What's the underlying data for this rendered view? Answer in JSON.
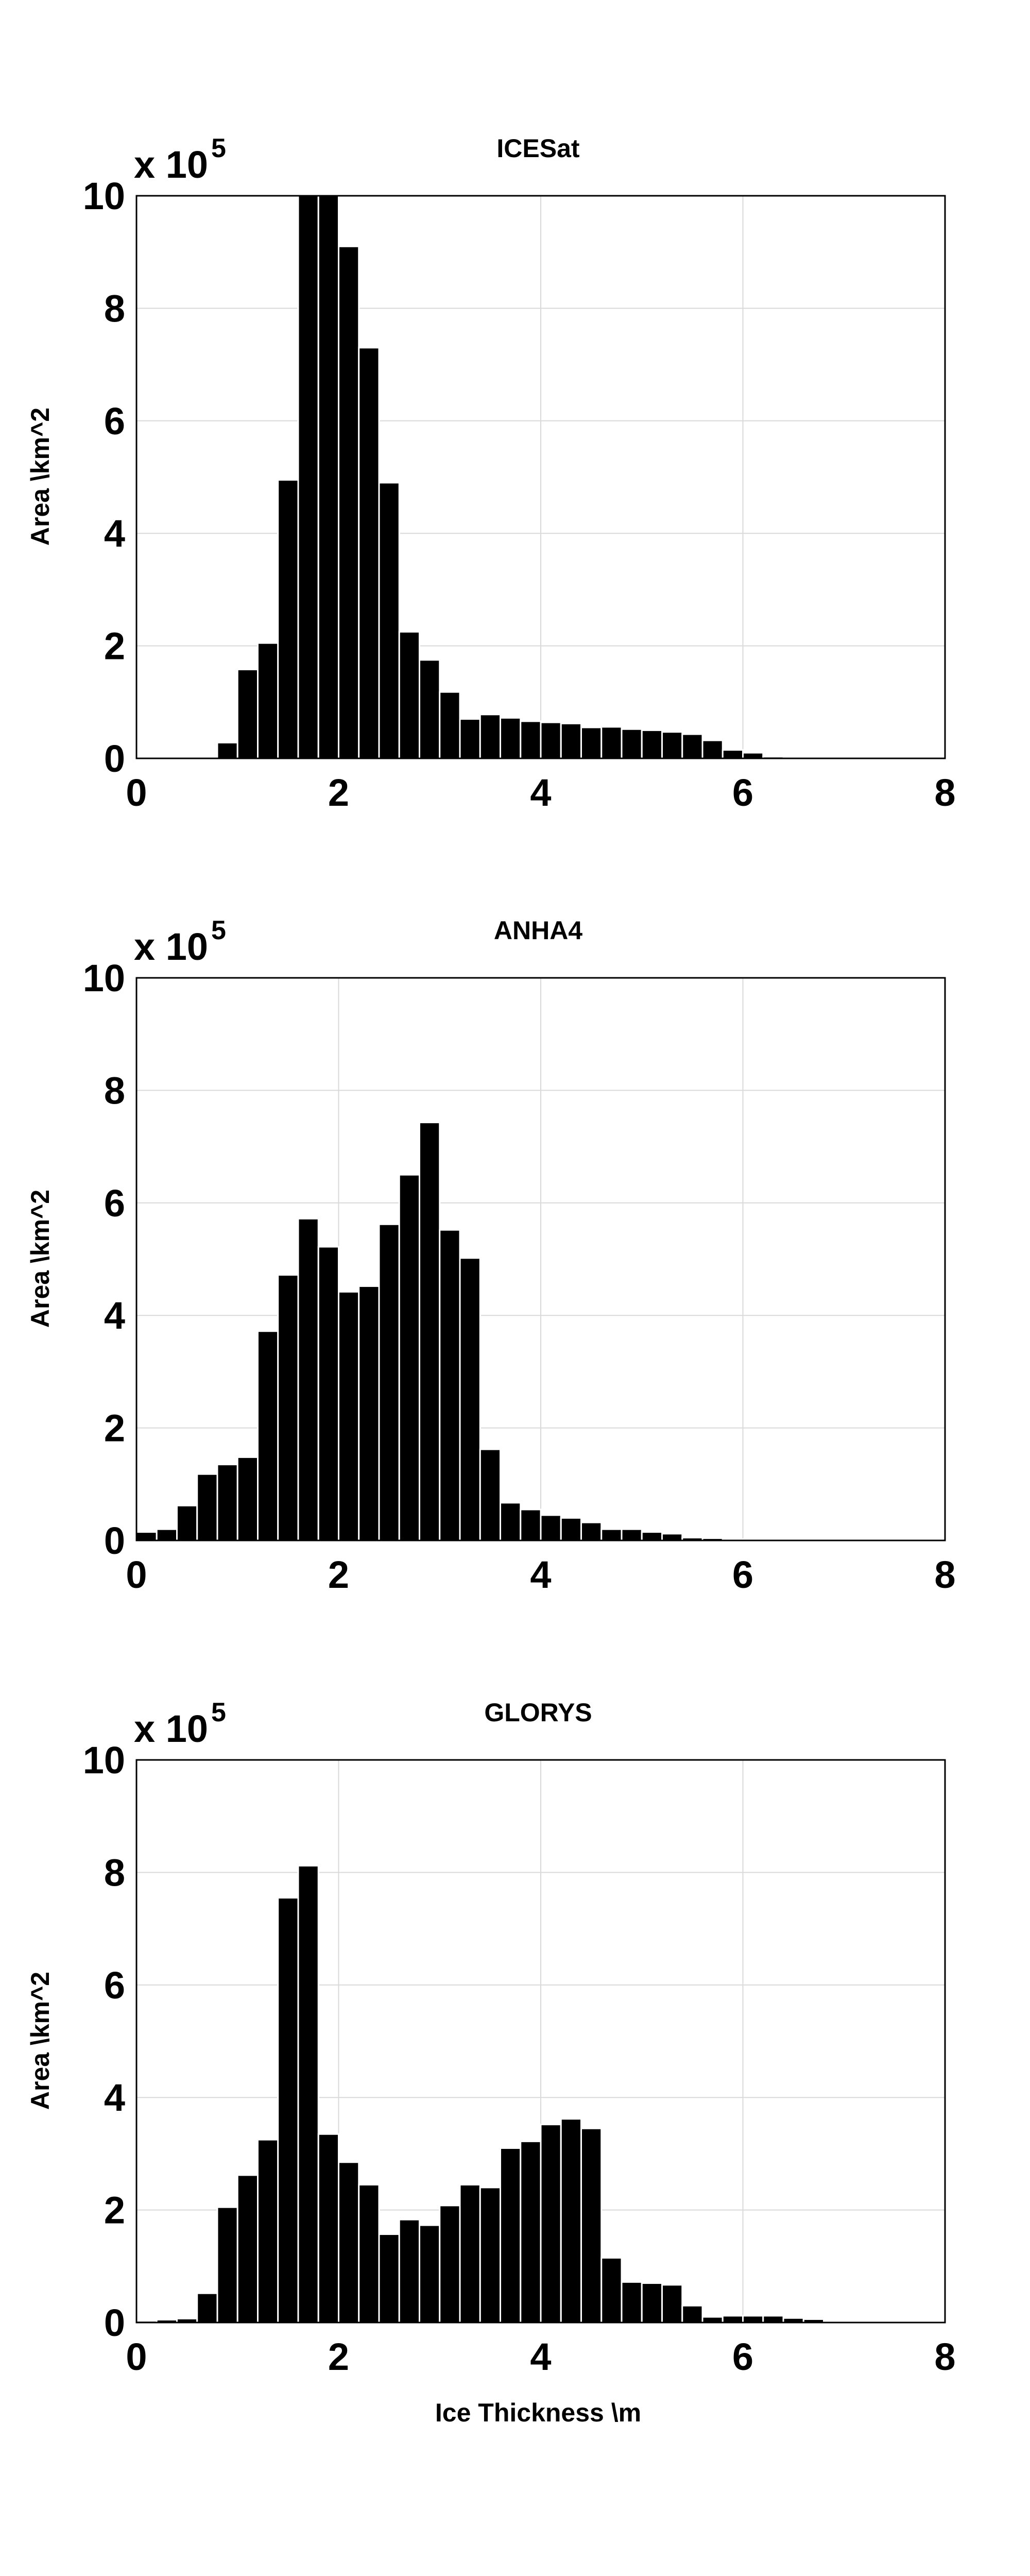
{
  "chart_data": [
    {
      "type": "bar",
      "title": "ICESat",
      "xlabel": "",
      "ylabel": "Area \\km^2",
      "y_multiplier": "x 10",
      "y_multiplier_exp": "5",
      "xlim": [
        0,
        8
      ],
      "ylim": [
        0,
        10
      ],
      "x_ticks": [
        "0",
        "2",
        "4",
        "6",
        "8"
      ],
      "y_ticks": [
        "0",
        "2",
        "4",
        "6",
        "8",
        "10"
      ],
      "grid": true,
      "bin_width": 0.2,
      "bin_starts": [
        0.0,
        0.2,
        0.4,
        0.6,
        0.8,
        1.0,
        1.2,
        1.4,
        1.6,
        1.8,
        2.0,
        2.2,
        2.4,
        2.6,
        2.8,
        3.0,
        3.2,
        3.4,
        3.6,
        3.8,
        4.0,
        4.2,
        4.4,
        4.6,
        4.8,
        5.0,
        5.2,
        5.4,
        5.6,
        5.8,
        6.0,
        6.2,
        6.4,
        6.6,
        6.8,
        7.0,
        7.2,
        7.4,
        7.6,
        7.8
      ],
      "values": [
        0,
        0,
        0,
        0,
        0.28,
        1.58,
        2.05,
        4.95,
        10.0,
        10.0,
        9.1,
        7.3,
        4.9,
        2.25,
        1.75,
        1.18,
        0.7,
        0.78,
        0.72,
        0.66,
        0.64,
        0.62,
        0.55,
        0.56,
        0.52,
        0.5,
        0.47,
        0.43,
        0.32,
        0.15,
        0.1,
        0.03,
        0,
        0,
        0,
        0,
        0,
        0,
        0,
        0
      ]
    },
    {
      "type": "bar",
      "title": "ANHA4",
      "xlabel": "",
      "ylabel": "Area \\km^2",
      "y_multiplier": "x 10",
      "y_multiplier_exp": "5",
      "xlim": [
        0,
        8
      ],
      "ylim": [
        0,
        10
      ],
      "x_ticks": [
        "0",
        "2",
        "4",
        "6",
        "8"
      ],
      "y_ticks": [
        "0",
        "2",
        "4",
        "6",
        "8",
        "10"
      ],
      "grid": true,
      "bin_width": 0.2,
      "bin_starts": [
        0.0,
        0.2,
        0.4,
        0.6,
        0.8,
        1.0,
        1.2,
        1.4,
        1.6,
        1.8,
        2.0,
        2.2,
        2.4,
        2.6,
        2.8,
        3.0,
        3.2,
        3.4,
        3.6,
        3.8,
        4.0,
        4.2,
        4.4,
        4.6,
        4.8,
        5.0,
        5.2,
        5.4,
        5.6,
        5.8,
        6.0,
        6.2,
        6.4,
        6.6,
        6.8,
        7.0,
        7.2,
        7.4,
        7.6,
        7.8
      ],
      "values": [
        0.15,
        0.2,
        0.62,
        1.18,
        1.35,
        1.48,
        3.72,
        4.72,
        5.72,
        5.22,
        4.42,
        4.52,
        5.62,
        6.5,
        7.43,
        5.52,
        5.02,
        1.62,
        0.67,
        0.55,
        0.45,
        0.4,
        0.32,
        0.2,
        0.2,
        0.15,
        0.12,
        0.05,
        0.04,
        0.02,
        0.01,
        0.01,
        0,
        0,
        0,
        0,
        0,
        0,
        0,
        0
      ]
    },
    {
      "type": "bar",
      "title": "GLORYS",
      "xlabel": "Ice Thickness \\m",
      "ylabel": "Area \\km^2",
      "y_multiplier": "x 10",
      "y_multiplier_exp": "5",
      "xlim": [
        0,
        8
      ],
      "ylim": [
        0,
        10
      ],
      "x_ticks": [
        "0",
        "2",
        "4",
        "6",
        "8"
      ],
      "y_ticks": [
        "0",
        "2",
        "4",
        "6",
        "8",
        "10"
      ],
      "grid": true,
      "bin_width": 0.2,
      "bin_starts": [
        0.0,
        0.2,
        0.4,
        0.6,
        0.8,
        1.0,
        1.2,
        1.4,
        1.6,
        1.8,
        2.0,
        2.2,
        2.4,
        2.6,
        2.8,
        3.0,
        3.2,
        3.4,
        3.6,
        3.8,
        4.0,
        4.2,
        4.4,
        4.6,
        4.8,
        5.0,
        5.2,
        5.4,
        5.6,
        5.8,
        6.0,
        6.2,
        6.4,
        6.6,
        6.8,
        7.0,
        7.2,
        7.4,
        7.6,
        7.8
      ],
      "values": [
        0.03,
        0.05,
        0.07,
        0.52,
        2.05,
        2.62,
        3.25,
        7.55,
        8.12,
        3.35,
        2.85,
        2.45,
        1.57,
        1.83,
        1.73,
        2.08,
        2.45,
        2.4,
        3.1,
        3.22,
        3.52,
        3.62,
        3.45,
        1.15,
        0.72,
        0.7,
        0.67,
        0.3,
        0.1,
        0.12,
        0.12,
        0.12,
        0.08,
        0.06,
        0,
        0,
        0,
        0,
        0,
        0
      ]
    }
  ]
}
